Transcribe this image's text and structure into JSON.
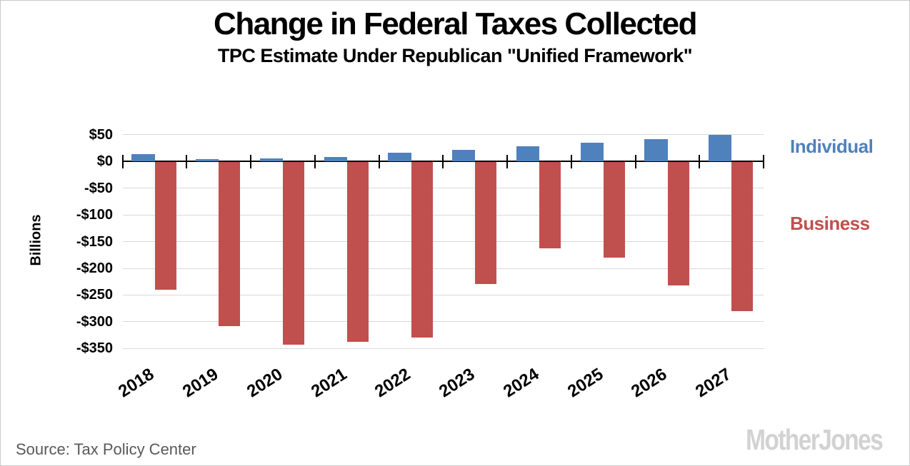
{
  "title": "Change in Federal Taxes Collected",
  "subtitle": "TPC Estimate Under Republican \"Unified Framework\"",
  "source": "Source: Tax Policy Center",
  "logo_text": "MotherJones",
  "colors": {
    "individual": "#4F81BD",
    "business": "#C0504D",
    "grid": "#d9d9d9",
    "axis": "#000000",
    "source_text": "#595959",
    "logo": "#d2d2d2"
  },
  "chart_data": {
    "type": "bar",
    "title": "Change in Federal Taxes Collected",
    "subtitle": "TPC Estimate Under Republican \"Unified Framework\"",
    "categories": [
      "2018",
      "2019",
      "2020",
      "2021",
      "2022",
      "2023",
      "2024",
      "2025",
      "2026",
      "2027"
    ],
    "series": [
      {
        "name": "Individual",
        "color": "#4F81BD",
        "values": [
          14,
          5,
          6,
          9,
          16,
          22,
          29,
          35,
          42,
          50
        ]
      },
      {
        "name": "Business",
        "color": "#C0504D",
        "values": [
          -240,
          -308,
          -343,
          -338,
          -330,
          -230,
          -162,
          -180,
          -232,
          -280
        ]
      }
    ],
    "xlabel": "",
    "ylabel": "Billions",
    "units": "billions of dollars",
    "ylim": [
      -350,
      50
    ],
    "ytick_values": [
      50,
      0,
      -50,
      -100,
      -150,
      -200,
      -250,
      -300,
      -350
    ],
    "ytick_labels": [
      "$50",
      "$0",
      "-$50",
      "-$100",
      "-$150",
      "-$200",
      "-$250",
      "-$300",
      "-$350"
    ],
    "grid": true,
    "legend_position": "right"
  }
}
